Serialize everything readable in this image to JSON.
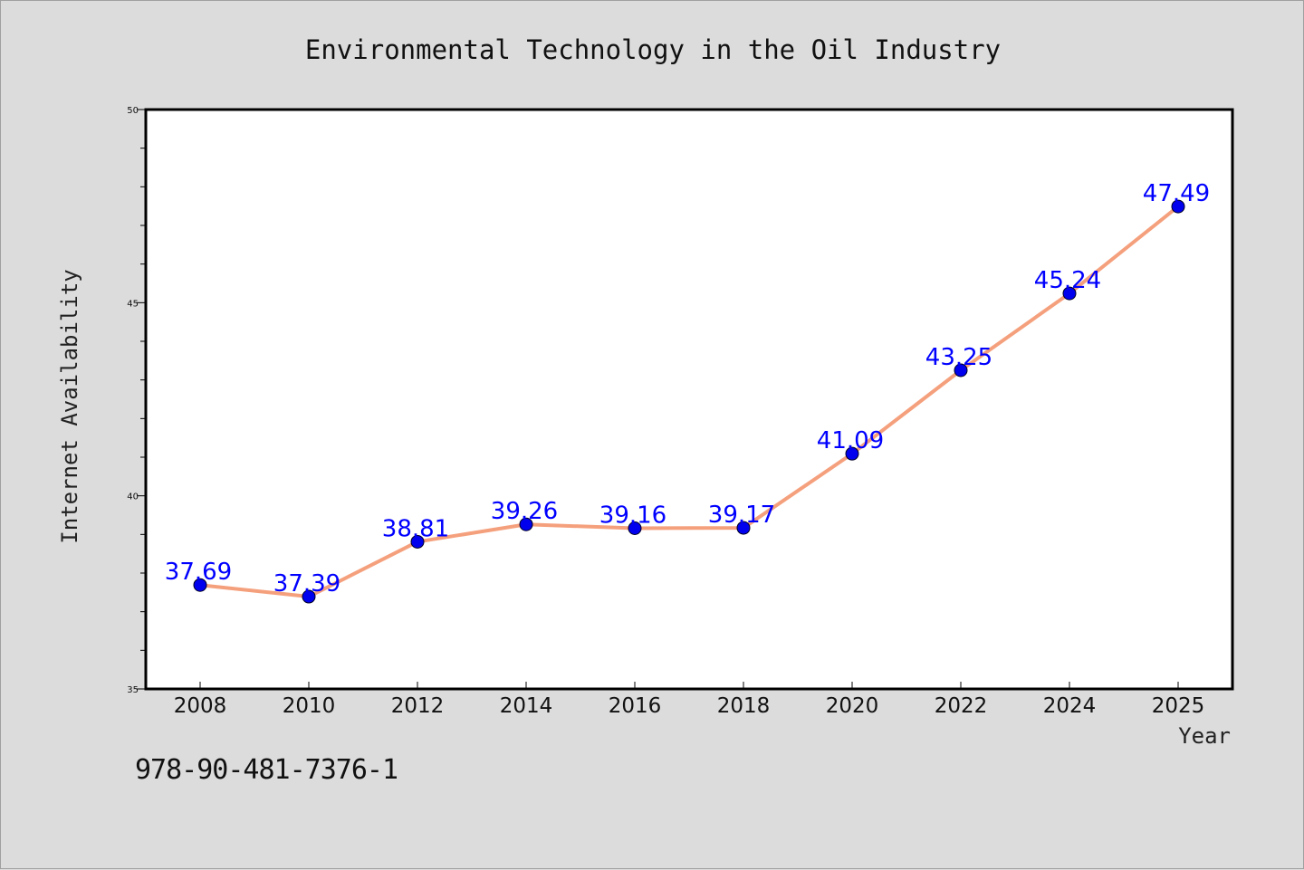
{
  "chart_data": {
    "type": "line",
    "title": "Environmental Technology in the Oil Industry",
    "xlabel": "Year",
    "ylabel": "Internet Availability",
    "x": [
      2008,
      2010,
      2012,
      2014,
      2016,
      2018,
      2020,
      2022,
      2024,
      2025
    ],
    "x_tick_labels": [
      "2008",
      "2010",
      "2012",
      "2014",
      "2016",
      "2018",
      "2020",
      "2022",
      "2024",
      "2025"
    ],
    "values": [
      37.69,
      37.39,
      38.81,
      39.26,
      39.16,
      39.17,
      41.09,
      43.25,
      45.24,
      47.49
    ],
    "data_labels": [
      "37.69",
      "37.39",
      "38.81",
      "39.26",
      "39.16",
      "39.17",
      "41.09",
      "43.25",
      "45.24",
      "47.49"
    ],
    "ylim": [
      35,
      50
    ],
    "y_ticks": [
      35,
      40,
      45,
      50
    ],
    "y_tick_labels": [
      "35",
      "40",
      "45",
      "50"
    ],
    "y_minor_step": 1,
    "grid": false,
    "legend": "none",
    "colors": {
      "line": "#f5a07d",
      "marker": "#0000ee",
      "data_label": "#0000ff",
      "plot_bg": "#ffffff",
      "page_bg": "#dcdcdc"
    }
  },
  "footer": {
    "isbn": "978-90-481-7376-1"
  }
}
